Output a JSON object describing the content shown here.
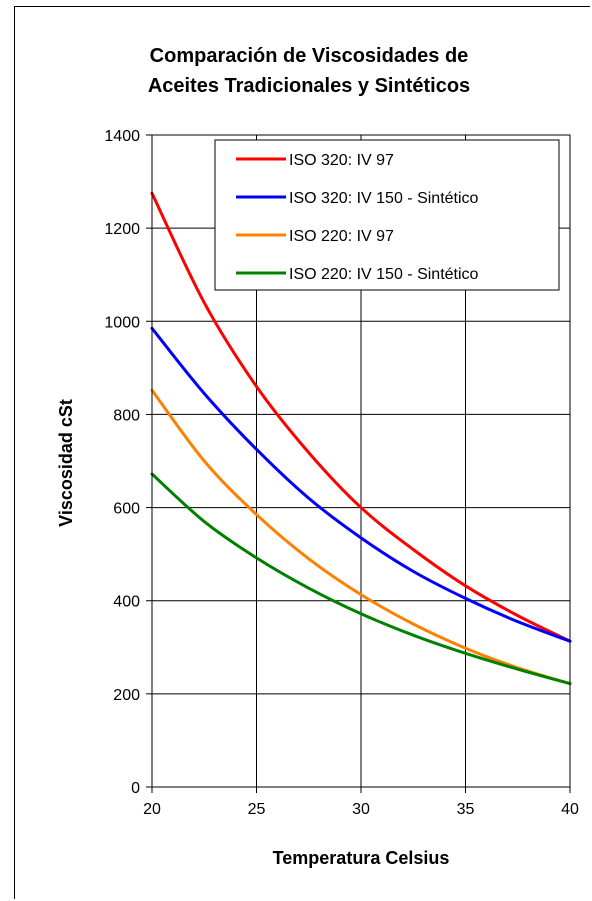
{
  "chart_data": {
    "type": "line",
    "title": "Comparación de Viscosidades de",
    "subtitle": "Aceites Tradicionales y Sintéticos",
    "xlabel": "Temperatura Celsius",
    "ylabel": "Viscosidad cSt",
    "xlim": [
      20,
      40
    ],
    "ylim": [
      0,
      1400
    ],
    "x_ticks": [
      "20",
      "25",
      "30",
      "35",
      "40"
    ],
    "y_ticks": [
      "0",
      "200",
      "400",
      "600",
      "800",
      "1000",
      "1200",
      "1400"
    ],
    "grid": true,
    "legend_position": "top-right",
    "x": [
      20,
      22.5,
      25,
      27.5,
      30,
      32.5,
      35,
      37.5,
      40
    ],
    "series": [
      {
        "name": "ISO 320:  IV 97",
        "color": "#ff0000",
        "values": [
          1275,
          1040,
          860,
          718,
          600,
          510,
          432,
          368,
          313
        ]
      },
      {
        "name": "ISO 320:  IV 150 - Sintético",
        "color": "#0000ff",
        "values": [
          985,
          845,
          725,
          620,
          535,
          463,
          405,
          355,
          313
        ]
      },
      {
        "name": "ISO 220:  IV 97",
        "color": "#ff8000",
        "values": [
          852,
          700,
          585,
          490,
          413,
          350,
          298,
          256,
          222
        ]
      },
      {
        "name": "ISO 220:  IV 150 - Sintético",
        "color": "#008000",
        "values": [
          672,
          570,
          492,
          427,
          372,
          326,
          287,
          253,
          222
        ]
      }
    ]
  }
}
